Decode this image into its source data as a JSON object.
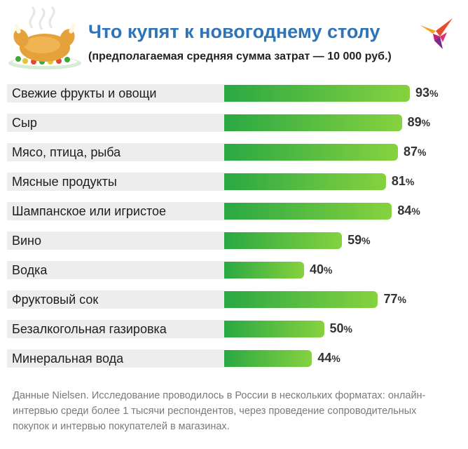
{
  "header": {
    "title": "Что купят к новогоднему столу",
    "subtitle": "(предполагаемая средняя сумма затрат — 10 000 руб.)"
  },
  "icons": {
    "illustration": "roast-turkey-icon",
    "logo": "swallow-logo-icon"
  },
  "colors": {
    "title": "#2e74b8",
    "bar_start": "#2aa843",
    "bar_end": "#86d23f",
    "label_band": "#ededed"
  },
  "chart_data": {
    "type": "bar",
    "orientation": "horizontal",
    "title": "Что купят к новогоднему столу",
    "subtitle": "(предполагаемая средняя сумма затрат — 10 000 руб.)",
    "categories": [
      "Свежие фрукты и овощи",
      "Сыр",
      "Мясо, птица, рыба",
      "Мясные продукты",
      "Шампанское или игристое",
      "Вино",
      "Водка",
      "Фруктовый сок",
      "Безалкогольная газировка",
      "Минеральная вода"
    ],
    "values": [
      93,
      89,
      87,
      81,
      84,
      59,
      40,
      77,
      50,
      44
    ],
    "unit": "%",
    "xlim": [
      0,
      100
    ],
    "grid": false,
    "data_labels": true
  },
  "footnote": "Данные Nielsen. Исследование проводилось в России в нескольких форматах: онлайн-интервью среди более 1 тысячи респондентов, через проведение сопроводительных покупок и интервью покупателей в магазинах."
}
